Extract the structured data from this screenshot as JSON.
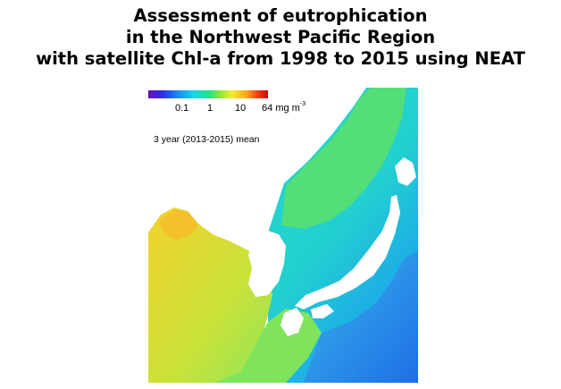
{
  "title": {
    "line1": "Assessment of eutrophication",
    "line2": "in the Northwest Pacific Region",
    "line3": "with satellite Chl-a from 1998 to 2015 using NEAT"
  },
  "legend": {
    "ticks": [
      "0.1",
      "1",
      "10"
    ],
    "max_value": "64",
    "unit": "mg m",
    "unit_exp": "-3",
    "scale": "log",
    "colors": [
      "#6a0fb5",
      "#2a2ee8",
      "#1a8cf0",
      "#18d6e8",
      "#1de38c",
      "#8ee63a",
      "#f2ec2a",
      "#f8a81e",
      "#ef3a12",
      "#c40c0c"
    ]
  },
  "period_label": "3 year (2013-2015) mean",
  "map": {
    "land_color": "#ffffff",
    "ocean_colors": {
      "coastal_high": "#f2c52a",
      "coastal_mid": "#b8e43a",
      "shelf": "#5ee07a",
      "open_sea": "#20dccc",
      "pacific_low": "#2a7ef0"
    }
  }
}
